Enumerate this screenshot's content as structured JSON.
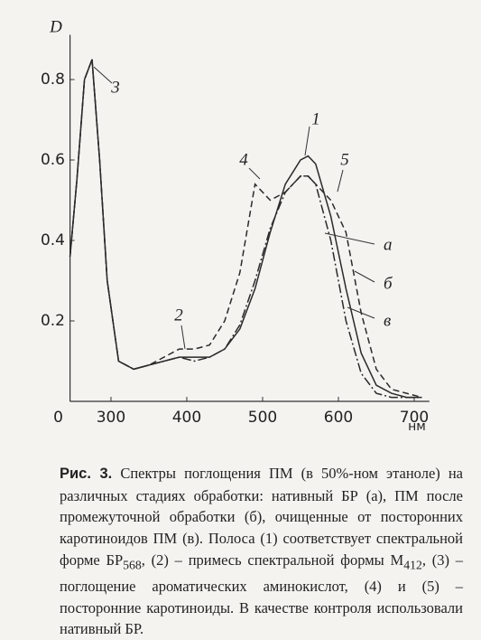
{
  "chart_data": {
    "type": "line",
    "y_label": "D",
    "x_unit": "нм",
    "x": [
      246,
      255,
      265,
      275,
      285,
      295,
      310,
      330,
      350,
      370,
      390,
      410,
      430,
      450,
      470,
      490,
      510,
      530,
      550,
      560,
      570,
      590,
      610,
      630,
      650,
      670,
      690,
      710
    ],
    "series": [
      {
        "name": "а",
        "color": "#2a2a2a",
        "dash": "solid",
        "values": [
          0.36,
          0.55,
          0.8,
          0.85,
          0.6,
          0.3,
          0.1,
          0.08,
          0.09,
          0.1,
          0.11,
          0.11,
          0.11,
          0.13,
          0.18,
          0.28,
          0.42,
          0.54,
          0.6,
          0.61,
          0.59,
          0.46,
          0.28,
          0.12,
          0.04,
          0.02,
          0.01,
          0.01
        ]
      },
      {
        "name": "б",
        "color": "#2a2a2a",
        "dash": "dashed",
        "values": [
          0.36,
          0.55,
          0.8,
          0.85,
          0.6,
          0.3,
          0.1,
          0.08,
          0.09,
          0.11,
          0.13,
          0.13,
          0.14,
          0.2,
          0.32,
          0.54,
          0.5,
          0.52,
          0.56,
          0.56,
          0.54,
          0.5,
          0.42,
          0.22,
          0.08,
          0.03,
          0.02,
          0.01
        ]
      },
      {
        "name": "в",
        "color": "#2a2a2a",
        "dash": "dashdot",
        "values": [
          0.36,
          0.55,
          0.8,
          0.85,
          0.6,
          0.3,
          0.1,
          0.08,
          0.09,
          0.1,
          0.11,
          0.1,
          0.11,
          0.13,
          0.19,
          0.3,
          0.43,
          0.52,
          0.56,
          0.56,
          0.54,
          0.4,
          0.2,
          0.07,
          0.02,
          0.01,
          0.01,
          0.01
        ]
      }
    ],
    "annotations": [
      "1",
      "2",
      "3",
      "4",
      "5"
    ],
    "xlim": [
      246,
      720
    ],
    "xticks": [
      300,
      400,
      500,
      600,
      700
    ],
    "ylim": [
      0,
      0.9
    ],
    "yticks": [
      0,
      0.2,
      0.4,
      0.6,
      0.8
    ],
    "grid": false
  },
  "caption": {
    "label": "Рис. 3.",
    "parts": [
      {
        "text": "Спектры поглощения ПМ (в 50%-ном этаноле) на различных стадиях обработки: нативный БР (а), ПМ после промежуточной обработки (б), очищенные от посторонних каротиноидов ПМ (в). Полоса (1) соответствует спектральной форме БР"
      },
      {
        "sub": "568"
      },
      {
        "text": ", (2) – примесь спектральной формы M"
      },
      {
        "sub": "412"
      },
      {
        "text": ", (3) – поглощение ароматических аминокислот, (4) и (5) – посторонние каротиноиды. В качестве контроля использовали нативный БР."
      }
    ]
  }
}
